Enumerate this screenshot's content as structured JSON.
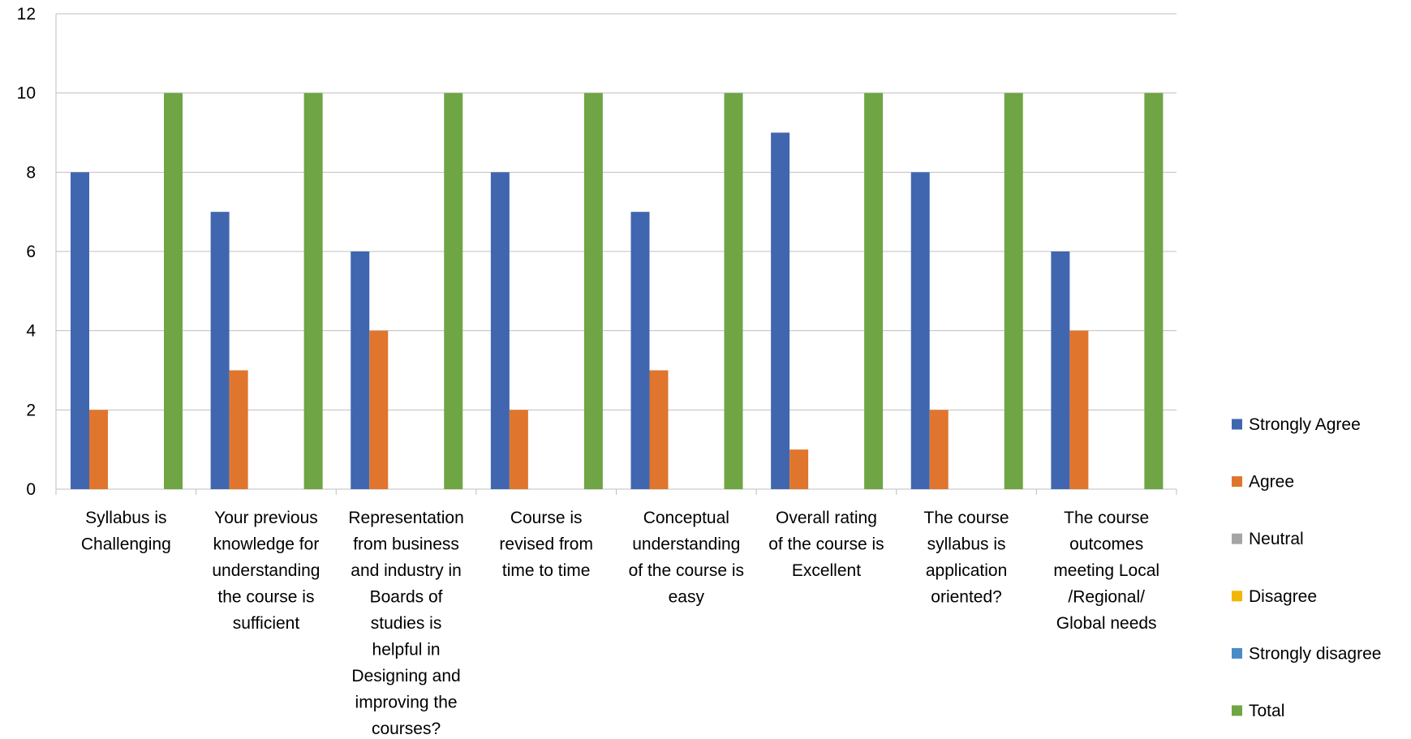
{
  "chart_data": {
    "type": "bar",
    "title": "",
    "xlabel": "",
    "ylabel": "",
    "ylim": [
      0,
      12
    ],
    "y_ticks": [
      0,
      2,
      4,
      6,
      8,
      10,
      12
    ],
    "grid": true,
    "legend_position": "right",
    "categories": [
      "Syllabus is Challenging",
      "Your previous knowledge for understanding the course is sufficient",
      "Representation from business and industry in Boards of studies is helpful in Designing and improving the courses?",
      "Course is revised from time to time",
      "Conceptual understanding of the course is easy",
      "Overall rating of the course is Excellent",
      "The course syllabus is application oriented?",
      "The course outcomes meeting Local /Regional/ Global needs"
    ],
    "category_label_lines": [
      [
        "Syllabus is",
        "Challenging"
      ],
      [
        "Your previous",
        "knowledge  for",
        "understanding",
        "the course is",
        "sufficient"
      ],
      [
        "Representation",
        "from business",
        "and industry in",
        "Boards of",
        "studies is",
        "helpful in",
        "Designing and",
        "improving the",
        "courses?"
      ],
      [
        "Course is",
        "revised from",
        "time to time"
      ],
      [
        "Conceptual",
        "understanding",
        "of the course is",
        "easy"
      ],
      [
        "Overall rating",
        "of the course is",
        "Excellent"
      ],
      [
        "The course",
        "syllabus is",
        "application",
        "oriented?"
      ],
      [
        "The course",
        "outcomes",
        "meeting Local",
        "/Regional/",
        "Global needs"
      ]
    ],
    "series": [
      {
        "name": "Strongly Agree",
        "color": "#4166B0",
        "values": [
          8,
          7,
          6,
          8,
          7,
          9,
          8,
          6
        ]
      },
      {
        "name": "Agree",
        "color": "#E0752D",
        "values": [
          2,
          3,
          4,
          2,
          3,
          1,
          2,
          4
        ]
      },
      {
        "name": "Neutral",
        "color": "#A5A5A5",
        "values": [
          0,
          0,
          0,
          0,
          0,
          0,
          0,
          0
        ]
      },
      {
        "name": "Disagree",
        "color": "#F2B705",
        "values": [
          0,
          0,
          0,
          0,
          0,
          0,
          0,
          0
        ]
      },
      {
        "name": "Strongly disagree",
        "color": "#4A8BC8",
        "values": [
          0,
          0,
          0,
          0,
          0,
          0,
          0,
          0
        ]
      },
      {
        "name": "Total",
        "color": "#6FA544",
        "values": [
          10,
          10,
          10,
          10,
          10,
          10,
          10,
          10
        ]
      }
    ]
  },
  "colors": {
    "gridline": "#BFBFBF",
    "axis": "#BFBFBF",
    "text": "#000000",
    "background": "#FFFFFF"
  }
}
